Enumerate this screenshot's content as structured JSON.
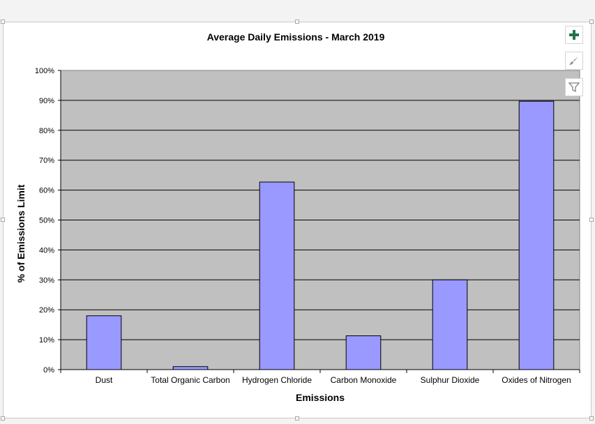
{
  "chart_data": {
    "type": "bar",
    "title": "Average Daily Emissions - March 2019",
    "xlabel": "Emissions",
    "ylabel": "% of Emissions Limit",
    "categories": [
      "Dust",
      "Total Organic Carbon",
      "Hydrogen Chloride",
      "Carbon Monoxide",
      "Sulphur Dioxide",
      "Oxides of Nitrogen"
    ],
    "values": [
      18,
      1,
      62.7,
      11.3,
      30,
      89.7
    ],
    "unit": "%",
    "ylim": [
      0,
      100
    ],
    "yticks": [
      "0%",
      "10%",
      "20%",
      "30%",
      "40%",
      "50%",
      "60%",
      "70%",
      "80%",
      "90%",
      "100%"
    ],
    "grid": true,
    "legend": "none",
    "colors": {
      "bar_fill": "#9999ff",
      "bar_stroke": "#000000",
      "plot_area": "#c0c0c0",
      "gridline": "#000000"
    }
  },
  "toolbar": {
    "buttons": [
      {
        "name": "chart-elements",
        "icon": "plus-icon",
        "color": "#217346"
      },
      {
        "name": "chart-styles",
        "icon": "paintbrush-icon",
        "color": "#7f7f7f"
      },
      {
        "name": "chart-filters",
        "icon": "filter-icon",
        "color": "#7f7f7f"
      }
    ]
  }
}
